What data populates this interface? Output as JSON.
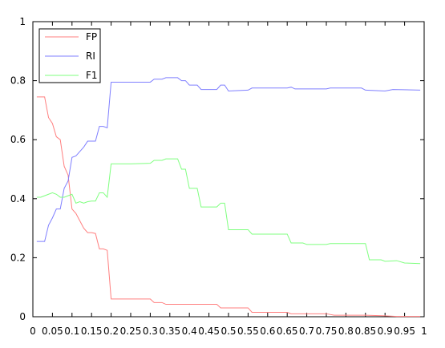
{
  "chart_data": {
    "type": "line",
    "title": "",
    "xlabel": "",
    "ylabel": "",
    "xlim": [
      0,
      1
    ],
    "ylim": [
      0,
      1
    ],
    "grid": false,
    "legend_position": "top-left",
    "x_tick_labels": [
      "0",
      "0.05",
      "0.1",
      "0.15",
      "0.2",
      "0.25",
      "0.3",
      "0.35",
      "0.4",
      "0.45",
      "0.5",
      "0.55",
      "0.6",
      "0.65",
      "0.7",
      "0.75",
      "0.8",
      "0.85",
      "0.9",
      "0.95",
      "1"
    ],
    "y_tick_labels": [
      "0",
      "0.2",
      "0.4",
      "0.6",
      "0.8",
      "1"
    ],
    "series": [
      {
        "name": "FP",
        "color": "#ff7f7f",
        "points": [
          [
            0.01,
            0.745
          ],
          [
            0.03,
            0.745
          ],
          [
            0.04,
            0.675
          ],
          [
            0.05,
            0.655
          ],
          [
            0.06,
            0.61
          ],
          [
            0.07,
            0.6
          ],
          [
            0.08,
            0.51
          ],
          [
            0.09,
            0.48
          ],
          [
            0.1,
            0.365
          ],
          [
            0.11,
            0.35
          ],
          [
            0.12,
            0.325
          ],
          [
            0.13,
            0.3
          ],
          [
            0.14,
            0.285
          ],
          [
            0.15,
            0.285
          ],
          [
            0.16,
            0.282
          ],
          [
            0.17,
            0.23
          ],
          [
            0.18,
            0.23
          ],
          [
            0.19,
            0.225
          ],
          [
            0.2,
            0.06
          ],
          [
            0.25,
            0.06
          ],
          [
            0.3,
            0.06
          ],
          [
            0.31,
            0.048
          ],
          [
            0.33,
            0.048
          ],
          [
            0.34,
            0.042
          ],
          [
            0.4,
            0.042
          ],
          [
            0.45,
            0.042
          ],
          [
            0.47,
            0.042
          ],
          [
            0.48,
            0.03
          ],
          [
            0.5,
            0.03
          ],
          [
            0.55,
            0.03
          ],
          [
            0.56,
            0.015
          ],
          [
            0.6,
            0.015
          ],
          [
            0.65,
            0.015
          ],
          [
            0.66,
            0.01
          ],
          [
            0.75,
            0.01
          ],
          [
            0.77,
            0.005
          ],
          [
            0.85,
            0.005
          ],
          [
            0.9,
            0.003
          ],
          [
            0.93,
            0.001
          ],
          [
            0.99,
            0.001
          ]
        ]
      },
      {
        "name": "RI",
        "color": "#7f7fff",
        "points": [
          [
            0.01,
            0.255
          ],
          [
            0.03,
            0.255
          ],
          [
            0.04,
            0.31
          ],
          [
            0.05,
            0.335
          ],
          [
            0.06,
            0.365
          ],
          [
            0.07,
            0.365
          ],
          [
            0.08,
            0.435
          ],
          [
            0.09,
            0.46
          ],
          [
            0.1,
            0.54
          ],
          [
            0.11,
            0.545
          ],
          [
            0.12,
            0.56
          ],
          [
            0.13,
            0.575
          ],
          [
            0.14,
            0.595
          ],
          [
            0.16,
            0.595
          ],
          [
            0.17,
            0.645
          ],
          [
            0.18,
            0.645
          ],
          [
            0.19,
            0.64
          ],
          [
            0.2,
            0.795
          ],
          [
            0.25,
            0.795
          ],
          [
            0.29,
            0.795
          ],
          [
            0.3,
            0.795
          ],
          [
            0.31,
            0.805
          ],
          [
            0.33,
            0.805
          ],
          [
            0.34,
            0.81
          ],
          [
            0.37,
            0.81
          ],
          [
            0.38,
            0.8
          ],
          [
            0.39,
            0.8
          ],
          [
            0.4,
            0.785
          ],
          [
            0.42,
            0.785
          ],
          [
            0.43,
            0.77
          ],
          [
            0.47,
            0.77
          ],
          [
            0.48,
            0.785
          ],
          [
            0.49,
            0.785
          ],
          [
            0.5,
            0.765
          ],
          [
            0.55,
            0.768
          ],
          [
            0.56,
            0.775
          ],
          [
            0.65,
            0.775
          ],
          [
            0.66,
            0.778
          ],
          [
            0.67,
            0.772
          ],
          [
            0.75,
            0.772
          ],
          [
            0.76,
            0.775
          ],
          [
            0.84,
            0.775
          ],
          [
            0.85,
            0.768
          ],
          [
            0.9,
            0.765
          ],
          [
            0.92,
            0.77
          ],
          [
            0.99,
            0.768
          ]
        ]
      },
      {
        "name": "F1",
        "color": "#7fff7f",
        "points": [
          [
            0.01,
            0.405
          ],
          [
            0.02,
            0.405
          ],
          [
            0.03,
            0.41
          ],
          [
            0.04,
            0.415
          ],
          [
            0.05,
            0.42
          ],
          [
            0.06,
            0.415
          ],
          [
            0.07,
            0.405
          ],
          [
            0.08,
            0.405
          ],
          [
            0.09,
            0.41
          ],
          [
            0.1,
            0.415
          ],
          [
            0.11,
            0.385
          ],
          [
            0.12,
            0.39
          ],
          [
            0.13,
            0.385
          ],
          [
            0.14,
            0.39
          ],
          [
            0.15,
            0.392
          ],
          [
            0.16,
            0.392
          ],
          [
            0.17,
            0.42
          ],
          [
            0.18,
            0.42
          ],
          [
            0.19,
            0.405
          ],
          [
            0.2,
            0.518
          ],
          [
            0.25,
            0.518
          ],
          [
            0.3,
            0.52
          ],
          [
            0.31,
            0.53
          ],
          [
            0.33,
            0.53
          ],
          [
            0.34,
            0.535
          ],
          [
            0.37,
            0.535
          ],
          [
            0.38,
            0.5
          ],
          [
            0.39,
            0.5
          ],
          [
            0.4,
            0.435
          ],
          [
            0.42,
            0.435
          ],
          [
            0.43,
            0.372
          ],
          [
            0.47,
            0.372
          ],
          [
            0.48,
            0.385
          ],
          [
            0.49,
            0.385
          ],
          [
            0.5,
            0.295
          ],
          [
            0.55,
            0.295
          ],
          [
            0.56,
            0.28
          ],
          [
            0.65,
            0.28
          ],
          [
            0.66,
            0.25
          ],
          [
            0.69,
            0.25
          ],
          [
            0.7,
            0.245
          ],
          [
            0.75,
            0.245
          ],
          [
            0.76,
            0.248
          ],
          [
            0.85,
            0.248
          ],
          [
            0.86,
            0.193
          ],
          [
            0.89,
            0.193
          ],
          [
            0.9,
            0.188
          ],
          [
            0.93,
            0.19
          ],
          [
            0.95,
            0.182
          ],
          [
            0.99,
            0.18
          ]
        ]
      }
    ]
  }
}
